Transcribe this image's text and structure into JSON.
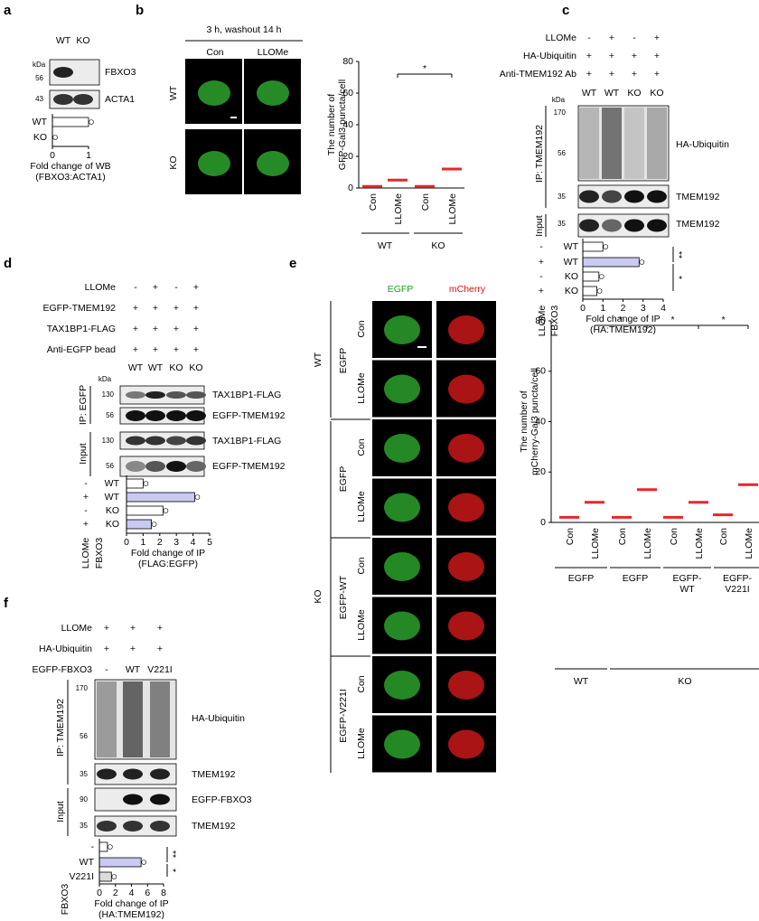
{
  "a": {
    "label": "a",
    "lanes": [
      "WT",
      "KO"
    ],
    "kda": "kDa",
    "markers": [
      "56",
      "43"
    ],
    "bands": [
      "FBXO3",
      "ACTA1"
    ],
    "chart": {
      "type": "bar",
      "categories": [
        "WT",
        "KO"
      ],
      "values": [
        1,
        0
      ],
      "colors": [
        "#ffffff",
        "#ffffff"
      ],
      "xlim": [
        0,
        1
      ],
      "xticks": [
        0,
        1
      ],
      "xlabel": [
        "Fold change of WB",
        "(FBXO3:ACTA1)"
      ]
    }
  },
  "b": {
    "label": "b",
    "header": "3 h, washout 14 h",
    "cols": [
      "Con",
      "LLOMe"
    ],
    "rows": [
      "WT",
      "KO"
    ],
    "chart": {
      "type": "scatter",
      "ylabel": [
        "The number of",
        "GFP-Gal3 puncta/cell"
      ],
      "ylim": [
        0,
        80
      ],
      "yticks": [
        0,
        20,
        40,
        60,
        80
      ],
      "categories": [
        "Con",
        "LLOMe",
        "Con",
        "LLOMe"
      ],
      "values": [
        1,
        5,
        1,
        12
      ],
      "color": "#e8262b",
      "groups": [
        "WT",
        "KO"
      ],
      "sig": [
        "*"
      ]
    }
  },
  "c": {
    "label": "c",
    "conditions": [
      "LLOMe",
      "HA-Ubiquitin",
      "Anti-TMEM192 Ab"
    ],
    "signs": [
      [
        "-",
        "+",
        "-",
        "+"
      ],
      [
        "+",
        "+",
        "+",
        "+"
      ],
      [
        "+",
        "+",
        "+",
        "+"
      ]
    ],
    "lanes": [
      "WT",
      "WT",
      "KO",
      "KO"
    ],
    "kda": "kDa",
    "ip": "IP: TMEM192",
    "input": "Input",
    "markers": [
      "170",
      "56",
      "35",
      "35"
    ],
    "bands": [
      "HA-Ubiquitin",
      "TMEM192",
      "TMEM192"
    ],
    "chart": {
      "type": "bar",
      "llome": [
        "-",
        "+",
        "-",
        "+"
      ],
      "categories": [
        "WT",
        "WT",
        "KO",
        "KO"
      ],
      "values": [
        1,
        2.8,
        0.8,
        0.7
      ],
      "colors": [
        "#ffffff",
        "#c9c9f2",
        "#ffffff",
        "#ffffff"
      ],
      "xlim": [
        0,
        4
      ],
      "xticks": [
        0,
        1,
        2,
        3,
        4
      ],
      "headers": [
        "LLOMe",
        "FBXO3"
      ],
      "xlabel": [
        "Fold change of IP",
        "(HA:TMEM192)"
      ],
      "sig": [
        "**",
        "*"
      ]
    }
  },
  "d": {
    "label": "d",
    "conditions": [
      "LLOMe",
      "EGFP-TMEM192",
      "TAX1BP1-FLAG",
      "Anti-EGFP bead"
    ],
    "signs": [
      [
        "-",
        "+",
        "-",
        "+"
      ],
      [
        "+",
        "+",
        "+",
        "+"
      ],
      [
        "+",
        "+",
        "+",
        "+"
      ],
      [
        "+",
        "+",
        "+",
        "+"
      ]
    ],
    "lanes": [
      "WT",
      "WT",
      "KO",
      "KO"
    ],
    "kda": "kDa",
    "ip": "IP: EGFP",
    "input": "Input",
    "markers": [
      "130",
      "56",
      "130",
      "56"
    ],
    "bands": [
      "TAX1BP1-FLAG",
      "EGFP-TMEM192",
      "TAX1BP1-FLAG",
      "EGFP-TMEM192"
    ],
    "chart": {
      "type": "bar",
      "llome": [
        "-",
        "+",
        "-",
        "+"
      ],
      "categories": [
        "WT",
        "WT",
        "KO",
        "KO"
      ],
      "values": [
        1,
        4.1,
        2.2,
        1.5
      ],
      "colors": [
        "#ffffff",
        "#c9c9f2",
        "#ffffff",
        "#c9c9f2"
      ],
      "xlim": [
        0,
        5
      ],
      "xticks": [
        0,
        1,
        2,
        3,
        4,
        5
      ],
      "headers": [
        "LLOMe",
        "FBXO3"
      ],
      "xlabel": [
        "Fold change of  IP",
        "(FLAG:EGFP)"
      ]
    }
  },
  "e": {
    "label": "e",
    "channels": [
      "EGFP",
      "mCherry"
    ],
    "conditions": [
      "Con",
      "LLOMe"
    ],
    "groups": [
      "EGFP",
      "EGFP",
      "EGFP-WT",
      "EGFP-V221I"
    ],
    "genotypes": [
      "WT",
      "KO"
    ],
    "chart": {
      "type": "scatter",
      "ylabel": [
        "The number of",
        "mCherry-Gal3 puncta/cell"
      ],
      "ylim": [
        0,
        80
      ],
      "yticks": [
        0,
        20,
        40,
        60,
        80
      ],
      "categories": [
        "Con",
        "LLOMe",
        "Con",
        "LLOMe",
        "Con",
        "LLOMe",
        "Con",
        "LLOMe"
      ],
      "values": [
        2,
        8,
        2,
        13,
        2,
        8,
        3,
        15
      ],
      "color": "#e8262b",
      "groups": [
        [
          "EGFP"
        ],
        [
          "EGFP"
        ],
        [
          "EGFP-",
          "WT"
        ],
        [
          "EGFP-",
          "V221I"
        ]
      ],
      "genotypes": [
        "WT",
        "KO"
      ],
      "sig": [
        "*",
        "*",
        "*"
      ]
    }
  },
  "f": {
    "label": "f",
    "conditions": [
      "LLOMe",
      "HA-Ubiquitin",
      "EGFP-FBXO3"
    ],
    "signs": [
      [
        "+",
        "+",
        "+"
      ],
      [
        "+",
        "+",
        "+"
      ],
      [
        "-",
        "WT",
        "V221I"
      ]
    ],
    "ip": "IP: TMEM192",
    "input": "Input",
    "markers": [
      "170",
      "56",
      "35",
      "90",
      "35"
    ],
    "bands": [
      "HA-Ubiquitin",
      "TMEM192",
      "EGFP-FBXO3",
      "TMEM192"
    ],
    "chart": {
      "type": "bar",
      "categories": [
        "-",
        "WT",
        "V221I"
      ],
      "values": [
        1,
        5.2,
        1.5
      ],
      "colors": [
        "#ffffff",
        "#c9c9f2",
        "#dcdcdc"
      ],
      "xlim": [
        0,
        8
      ],
      "xticks": [
        0,
        2,
        4,
        6,
        8
      ],
      "header": "FBXO3",
      "xlabel": [
        "Fold change of  IP",
        "(HA:TMEM192)"
      ],
      "sig": [
        "**",
        "*"
      ]
    }
  }
}
